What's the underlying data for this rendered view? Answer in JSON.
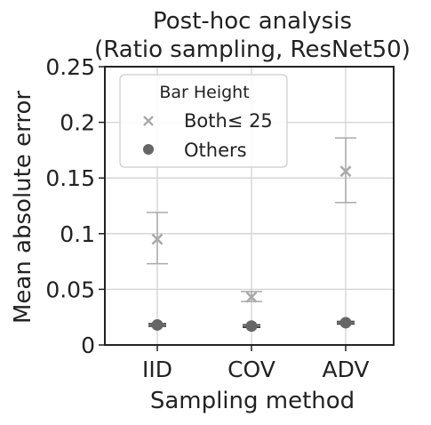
{
  "chart_data": {
    "type": "scatter",
    "title": [
      "Post-hoc analysis",
      "(Ratio sampling, ResNet50)"
    ],
    "xlabel": "Sampling method",
    "ylabel": "Mean absolute error",
    "categories": [
      "IID",
      "COV",
      "ADV"
    ],
    "ylim": [
      0,
      0.25
    ],
    "yticks": [
      0,
      0.05,
      0.1,
      0.15,
      0.2,
      0.25
    ],
    "ytick_labels": [
      "0",
      "0.05",
      "0.1",
      "0.15",
      "0.2",
      "0.25"
    ],
    "grid": true,
    "legend": {
      "title": "Bar Height",
      "placement": "top-left",
      "entries": [
        "Both≤ 25",
        "Others"
      ]
    },
    "series": [
      {
        "name": "Both≤ 25",
        "marker": "x",
        "color": "#aaaaaa",
        "values": [
          0.095,
          0.043,
          0.156
        ],
        "err_low": [
          0.073,
          0.039,
          0.128
        ],
        "err_high": [
          0.119,
          0.048,
          0.186
        ]
      },
      {
        "name": "Others",
        "marker": "circle",
        "color": "#666666",
        "values": [
          0.018,
          0.017,
          0.02
        ],
        "err_low": [
          0.017,
          0.016,
          0.019
        ],
        "err_high": [
          0.019,
          0.018,
          0.021
        ]
      }
    ]
  }
}
